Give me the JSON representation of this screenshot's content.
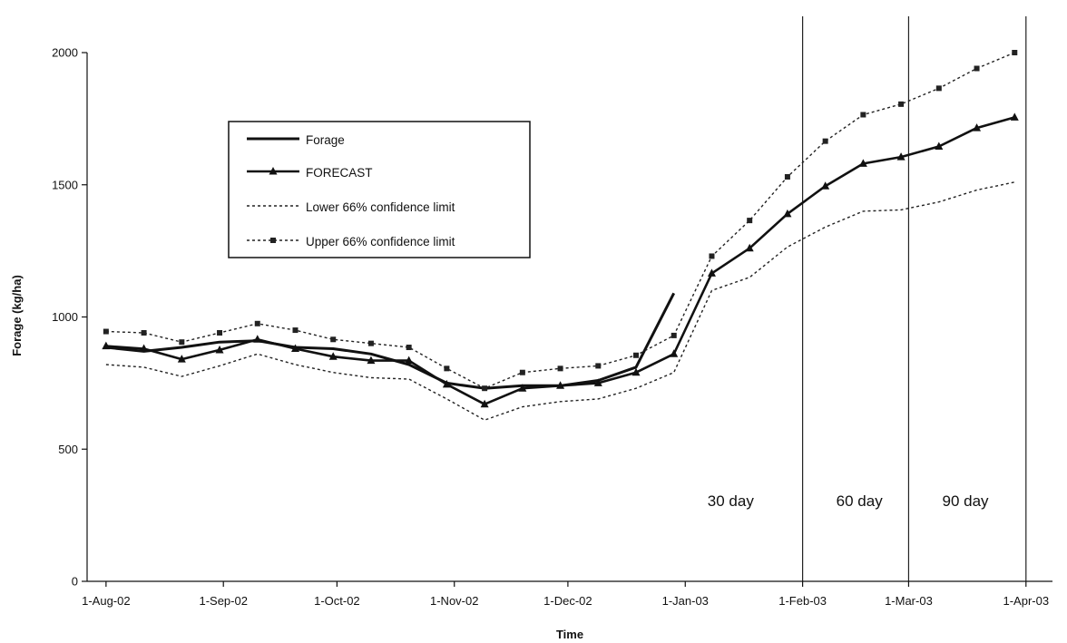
{
  "chart_data": {
    "type": "line",
    "title": "",
    "xlabel": "Time",
    "ylabel": "Forage (kg/ha)",
    "ylim": [
      0,
      2000
    ],
    "yticks": [
      0,
      500,
      1000,
      1500,
      2000
    ],
    "xlim": [
      "2002-07-27",
      "2003-04-08"
    ],
    "xticks": [
      {
        "date": "2002-08-01",
        "label": "1-Aug-02"
      },
      {
        "date": "2002-09-01",
        "label": "1-Sep-02"
      },
      {
        "date": "2002-10-01",
        "label": "1-Oct-02"
      },
      {
        "date": "2002-11-01",
        "label": "1-Nov-02"
      },
      {
        "date": "2002-12-01",
        "label": "1-Dec-02"
      },
      {
        "date": "2003-01-01",
        "label": "1-Jan-03"
      },
      {
        "date": "2003-02-01",
        "label": "1-Feb-03"
      },
      {
        "date": "2003-03-01",
        "label": "1-Mar-03"
      },
      {
        "date": "2003-04-01",
        "label": "1-Apr-03"
      }
    ],
    "period_boundaries": [
      {
        "date": "2003-02-01",
        "label": "30 day",
        "label_date": "2003-01-13"
      },
      {
        "date": "2003-03-01",
        "label": "60 day",
        "label_date": "2003-02-16"
      },
      {
        "date": "2003-04-01",
        "label": "90 day",
        "label_date": "2003-03-16"
      }
    ],
    "legend": {
      "position": "upper-left-inside"
    },
    "series": [
      {
        "name": "Forage",
        "style": "solid-thick",
        "color": "#111111",
        "points": [
          [
            "2002-08-01",
            885
          ],
          [
            "2002-08-11",
            870
          ],
          [
            "2002-08-21",
            885
          ],
          [
            "2002-08-31",
            905
          ],
          [
            "2002-09-10",
            910
          ],
          [
            "2002-09-20",
            885
          ],
          [
            "2002-09-30",
            880
          ],
          [
            "2002-10-10",
            860
          ],
          [
            "2002-10-20",
            820
          ],
          [
            "2002-10-30",
            750
          ],
          [
            "2002-11-09",
            730
          ],
          [
            "2002-11-19",
            740
          ],
          [
            "2002-11-29",
            740
          ],
          [
            "2002-12-09",
            760
          ],
          [
            "2002-12-19",
            810
          ],
          [
            "2002-12-29",
            1090
          ]
        ]
      },
      {
        "name": "FORECAST",
        "style": "solid-triangle",
        "color": "#111111",
        "points": [
          [
            "2002-08-01",
            890
          ],
          [
            "2002-08-11",
            880
          ],
          [
            "2002-08-21",
            840
          ],
          [
            "2002-08-31",
            875
          ],
          [
            "2002-09-10",
            915
          ],
          [
            "2002-09-20",
            880
          ],
          [
            "2002-09-30",
            850
          ],
          [
            "2002-10-10",
            835
          ],
          [
            "2002-10-20",
            835
          ],
          [
            "2002-10-30",
            745
          ],
          [
            "2002-11-09",
            670
          ],
          [
            "2002-11-19",
            730
          ],
          [
            "2002-11-29",
            740
          ],
          [
            "2002-12-09",
            750
          ],
          [
            "2002-12-19",
            790
          ],
          [
            "2002-12-29",
            860
          ],
          [
            "2003-01-08",
            1165
          ],
          [
            "2003-01-18",
            1260
          ],
          [
            "2003-01-28",
            1390
          ],
          [
            "2003-02-07",
            1495
          ],
          [
            "2003-02-17",
            1580
          ],
          [
            "2003-02-27",
            1605
          ],
          [
            "2003-03-09",
            1645
          ],
          [
            "2003-03-19",
            1715
          ],
          [
            "2003-03-29",
            1755
          ]
        ]
      },
      {
        "name": "Lower 66% confidence limit",
        "style": "dotted",
        "color": "#222222",
        "points": [
          [
            "2002-08-01",
            820
          ],
          [
            "2002-08-11",
            810
          ],
          [
            "2002-08-21",
            775
          ],
          [
            "2002-08-31",
            815
          ],
          [
            "2002-09-10",
            860
          ],
          [
            "2002-09-20",
            820
          ],
          [
            "2002-09-30",
            790
          ],
          [
            "2002-10-10",
            770
          ],
          [
            "2002-10-20",
            765
          ],
          [
            "2002-10-30",
            690
          ],
          [
            "2002-11-09",
            610
          ],
          [
            "2002-11-19",
            660
          ],
          [
            "2002-11-29",
            680
          ],
          [
            "2002-12-09",
            690
          ],
          [
            "2002-12-19",
            730
          ],
          [
            "2002-12-29",
            790
          ],
          [
            "2003-01-08",
            1100
          ],
          [
            "2003-01-18",
            1150
          ],
          [
            "2003-01-28",
            1265
          ],
          [
            "2003-02-07",
            1340
          ],
          [
            "2003-02-17",
            1400
          ],
          [
            "2003-02-27",
            1405
          ],
          [
            "2003-03-09",
            1435
          ],
          [
            "2003-03-19",
            1480
          ],
          [
            "2003-03-29",
            1510
          ]
        ]
      },
      {
        "name": "Upper 66% confidence limit",
        "style": "dotted-square",
        "color": "#222222",
        "points": [
          [
            "2002-08-01",
            945
          ],
          [
            "2002-08-11",
            940
          ],
          [
            "2002-08-21",
            905
          ],
          [
            "2002-08-31",
            940
          ],
          [
            "2002-09-10",
            975
          ],
          [
            "2002-09-20",
            950
          ],
          [
            "2002-09-30",
            915
          ],
          [
            "2002-10-10",
            900
          ],
          [
            "2002-10-20",
            885
          ],
          [
            "2002-10-30",
            805
          ],
          [
            "2002-11-09",
            730
          ],
          [
            "2002-11-19",
            790
          ],
          [
            "2002-11-29",
            805
          ],
          [
            "2002-12-09",
            815
          ],
          [
            "2002-12-19",
            855
          ],
          [
            "2002-12-29",
            930
          ],
          [
            "2003-01-08",
            1230
          ],
          [
            "2003-01-18",
            1365
          ],
          [
            "2003-01-28",
            1530
          ],
          [
            "2003-02-07",
            1665
          ],
          [
            "2003-02-17",
            1765
          ],
          [
            "2003-02-27",
            1805
          ],
          [
            "2003-03-09",
            1865
          ],
          [
            "2003-03-19",
            1940
          ],
          [
            "2003-03-29",
            2000
          ]
        ]
      }
    ]
  }
}
